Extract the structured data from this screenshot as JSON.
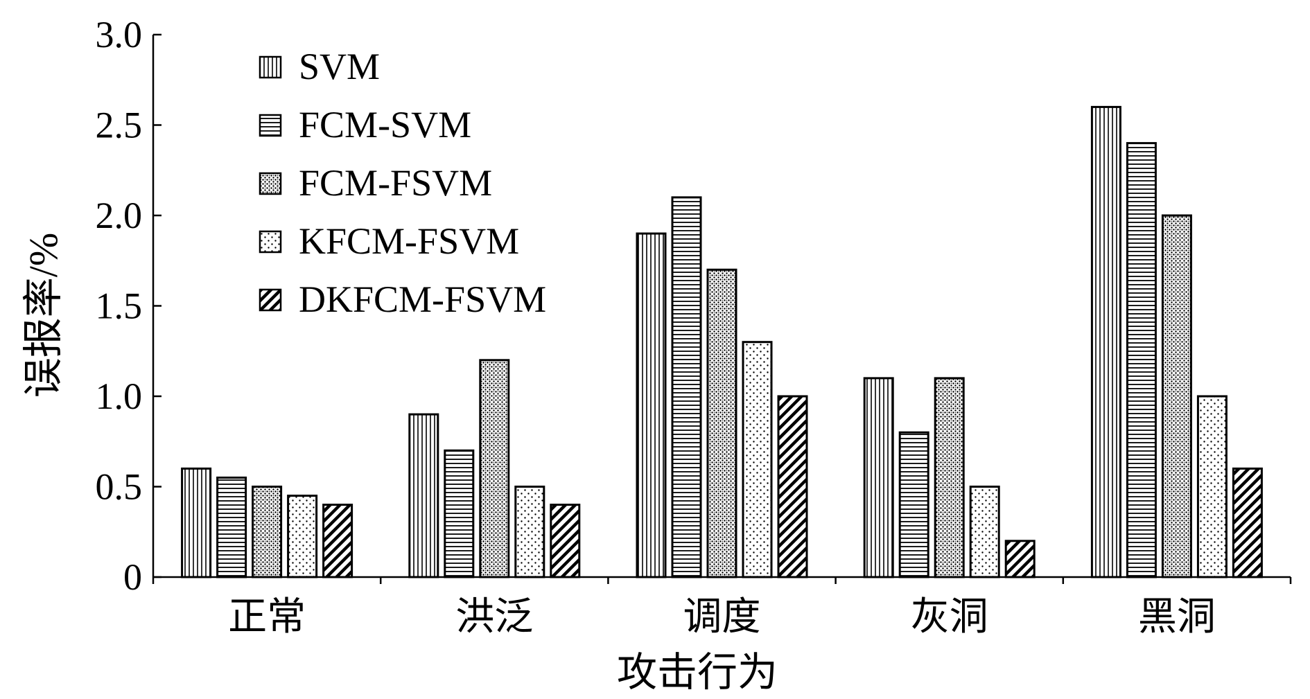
{
  "chart_data": {
    "type": "bar",
    "title": "",
    "xlabel": "攻击行为",
    "ylabel": "误报率/%",
    "ylim": [
      0,
      3.0
    ],
    "yticks": [
      "0",
      "0.5",
      "1.0",
      "1.5",
      "2.0",
      "2.5",
      "3.0"
    ],
    "grid": false,
    "legend_position": "top-left",
    "categories": [
      "正常",
      "洪泛",
      "调度",
      "灰洞",
      "黑洞"
    ],
    "series": [
      {
        "name": "SVM",
        "pattern": "vertical-lines",
        "values": [
          0.6,
          0.9,
          1.9,
          1.1,
          2.6
        ]
      },
      {
        "name": "FCM-SVM",
        "pattern": "horizontal-lines",
        "values": [
          0.55,
          0.7,
          2.1,
          0.8,
          2.4
        ]
      },
      {
        "name": "FCM-FSVM",
        "pattern": "dense-dots",
        "values": [
          0.5,
          1.2,
          1.7,
          1.1,
          2.0
        ]
      },
      {
        "name": "KFCM-FSVM",
        "pattern": "sparse-dots",
        "values": [
          0.45,
          0.5,
          1.3,
          0.5,
          1.0
        ]
      },
      {
        "name": "DKFCM-FSVM",
        "pattern": "diagonal-lines",
        "values": [
          0.4,
          0.4,
          1.0,
          0.2,
          0.6
        ]
      }
    ]
  }
}
